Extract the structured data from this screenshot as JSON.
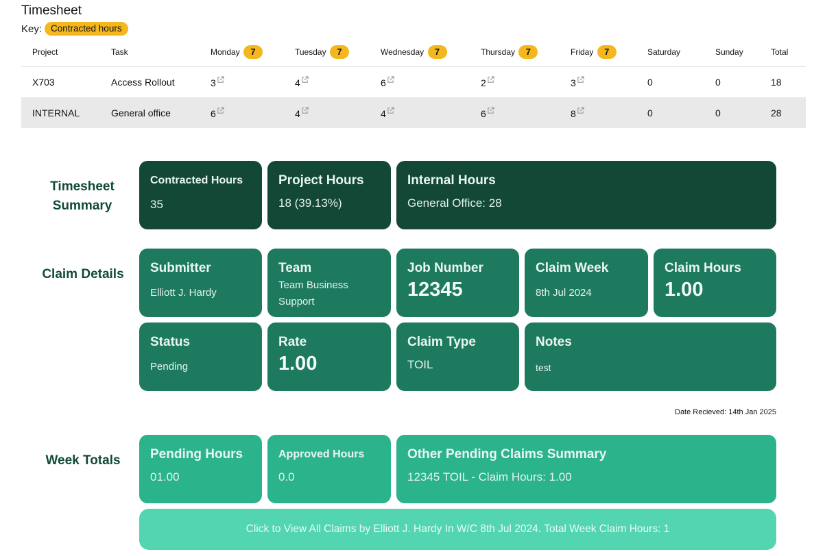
{
  "timesheet": {
    "title": "Timesheet",
    "key_label": "Key:",
    "key_badge": "Contracted hours",
    "columns": {
      "project": "Project",
      "task": "Task",
      "monday": "Monday",
      "tuesday": "Tuesday",
      "wednesday": "Wednesday",
      "thursday": "Thursday",
      "friday": "Friday",
      "saturday": "Saturday",
      "sunday": "Sunday",
      "total": "Total"
    },
    "contracted": {
      "monday": "7",
      "tuesday": "7",
      "wednesday": "7",
      "thursday": "7",
      "friday": "7"
    },
    "rows": [
      {
        "project": "X703",
        "task": "Access Rollout",
        "mon": "3",
        "tue": "4",
        "wed": "6",
        "thu": "2",
        "fri": "3",
        "sat": "0",
        "sun": "0",
        "total": "18"
      },
      {
        "project": "INTERNAL",
        "task": "General office",
        "mon": "6",
        "tue": "4",
        "wed": "4",
        "thu": "6",
        "fri": "8",
        "sat": "0",
        "sun": "0",
        "total": "28"
      }
    ]
  },
  "summary": {
    "label": "Timesheet Summary",
    "contracted": {
      "title": "Contracted Hours",
      "value": "35"
    },
    "project": {
      "title": "Project Hours",
      "value": "18 (39.13%)"
    },
    "internal": {
      "title": "Internal Hours",
      "value": "General Office: 28"
    }
  },
  "claim": {
    "label": "Claim Details",
    "submitter": {
      "title": "Submitter",
      "value": "Elliott J. Hardy"
    },
    "team": {
      "title": "Team",
      "value": "Team Business Support"
    },
    "job": {
      "title": "Job Number",
      "value": "12345"
    },
    "week": {
      "title": "Claim Week",
      "value": "8th Jul 2024"
    },
    "hours": {
      "title": "Claim Hours",
      "value": "1.00"
    },
    "status": {
      "title": "Status",
      "value": "Pending"
    },
    "rate": {
      "title": "Rate",
      "value": "1.00"
    },
    "type": {
      "title": "Claim Type",
      "value": "TOIL"
    },
    "notes": {
      "title": "Notes",
      "value": "test"
    },
    "date_received": "Date Recieved: 14th Jan 2025"
  },
  "totals": {
    "label": "Week Totals",
    "pending": {
      "title": "Pending Hours",
      "value": "01.00"
    },
    "approved": {
      "title": "Approved Hours",
      "value": "0.0"
    },
    "other": {
      "title": "Other Pending Claims Summary",
      "value": "12345 TOIL - Claim Hours: 1.00"
    },
    "cta": "Click to View All Claims by Elliott J. Hardy In W/C 8th Jul 2024. Total Week Claim Hours: 1"
  },
  "colors": {
    "dark": "#124835",
    "mid": "#1e7a5f",
    "light": "#2bb38b",
    "pale": "#52d5b0",
    "badge": "#f4b81e"
  },
  "icons": {
    "external": "external-link-icon"
  }
}
